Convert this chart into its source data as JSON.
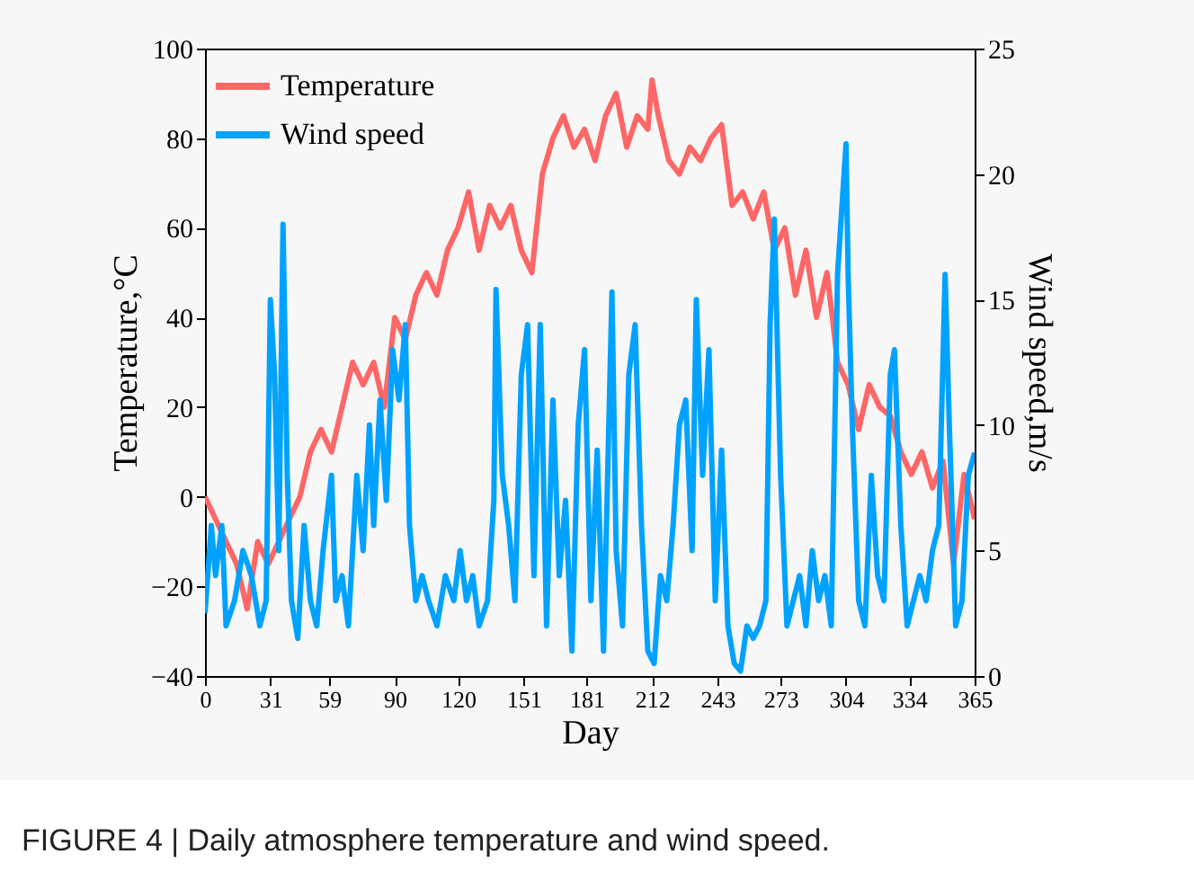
{
  "chart_data": {
    "type": "line",
    "xlabel": "Day",
    "ylabel": "Temperature,°C",
    "y2label": "Wind speed,m/s",
    "xlim": [
      0,
      365
    ],
    "xticks": [
      0,
      31,
      59,
      90,
      120,
      151,
      181,
      212,
      243,
      273,
      304,
      334,
      365
    ],
    "ylim": [
      -40,
      100
    ],
    "yticks": [
      -40,
      -20,
      0,
      20,
      40,
      60,
      80,
      100
    ],
    "y2lim": [
      0,
      25
    ],
    "y2ticks": [
      0,
      5,
      10,
      15,
      20,
      25
    ],
    "legend": "top left",
    "grid": false,
    "annotations": [
      "FIGURE 4 | Daily atmosphere temperature and wind speed."
    ],
    "series": [
      {
        "name": "Temperature",
        "color": "#ff6666",
        "x": [
          0,
          5,
          10,
          15,
          20,
          25,
          30,
          35,
          40,
          45,
          50,
          55,
          60,
          65,
          70,
          75,
          80,
          85,
          90,
          95,
          100,
          105,
          110,
          115,
          120,
          125,
          130,
          135,
          140,
          145,
          150,
          155,
          160,
          165,
          170,
          175,
          180,
          185,
          190,
          195,
          200,
          205,
          210,
          212,
          215,
          220,
          225,
          230,
          235,
          240,
          245,
          250,
          255,
          260,
          265,
          270,
          275,
          280,
          285,
          290,
          295,
          300,
          305,
          310,
          315,
          320,
          325,
          330,
          335,
          340,
          345,
          350,
          355,
          360,
          365
        ],
        "values": [
          0,
          -5,
          -10,
          -15,
          -25,
          -10,
          -15,
          -10,
          -5,
          0,
          10,
          15,
          10,
          20,
          30,
          25,
          30,
          20,
          40,
          35,
          45,
          50,
          45,
          55,
          60,
          68,
          55,
          65,
          60,
          65,
          55,
          50,
          72,
          80,
          85,
          78,
          82,
          75,
          85,
          90,
          78,
          85,
          82,
          93,
          85,
          75,
          72,
          78,
          75,
          80,
          83,
          65,
          68,
          62,
          68,
          55,
          60,
          45,
          55,
          40,
          50,
          30,
          25,
          15,
          25,
          20,
          18,
          10,
          5,
          10,
          2,
          8,
          -15,
          5,
          -5
        ]
      },
      {
        "name": "Wind speed",
        "color": "#00a2ff",
        "axis": "y2",
        "x": [
          0,
          3,
          5,
          8,
          10,
          14,
          18,
          22,
          26,
          29,
          31,
          33,
          35,
          37,
          39,
          41,
          44,
          47,
          50,
          53,
          56,
          60,
          62,
          65,
          68,
          72,
          75,
          78,
          80,
          83,
          86,
          89,
          92,
          95,
          97,
          100,
          103,
          106,
          110,
          114,
          118,
          121,
          124,
          127,
          130,
          134,
          137,
          138,
          141,
          144,
          147,
          150,
          153,
          156,
          159,
          162,
          165,
          168,
          171,
          174,
          177,
          180,
          183,
          186,
          189,
          193,
          195,
          198,
          201,
          204,
          207,
          210,
          213,
          216,
          219,
          222,
          225,
          228,
          231,
          233,
          236,
          239,
          242,
          245,
          248,
          251,
          254,
          257,
          260,
          263,
          266,
          268,
          270,
          273,
          276,
          279,
          282,
          285,
          288,
          291,
          294,
          297,
          300,
          304,
          305,
          307,
          310,
          313,
          316,
          319,
          322,
          325,
          327,
          330,
          333,
          336,
          339,
          342,
          345,
          348,
          351,
          353,
          356,
          359,
          362,
          365
        ],
        "values": [
          2.5,
          6,
          4,
          6,
          2,
          3,
          5,
          4,
          2,
          3,
          15,
          12,
          5,
          18,
          8,
          3,
          1.5,
          6,
          3,
          2,
          5,
          8,
          3,
          4,
          2,
          8,
          5,
          10,
          6,
          11,
          7,
          13,
          11,
          14,
          6,
          3,
          4,
          3,
          2,
          4,
          3,
          5,
          3,
          4,
          2,
          3,
          7,
          15.4,
          8,
          6,
          3,
          12,
          14,
          4,
          14,
          2,
          11,
          4,
          7,
          1,
          10,
          13,
          3,
          9,
          1,
          15.3,
          5,
          2,
          12,
          14,
          6,
          1,
          0.5,
          4,
          3,
          6,
          10,
          11,
          5,
          15,
          8,
          13,
          3,
          9,
          2,
          0.5,
          0.2,
          2,
          1.5,
          2,
          3,
          14,
          18.2,
          8,
          2,
          3,
          4,
          2,
          5,
          3,
          4,
          2,
          16,
          21.2,
          16,
          10,
          3,
          2,
          8,
          4,
          3,
          12,
          13,
          6,
          2,
          3,
          4,
          3,
          5,
          6,
          16,
          10,
          2,
          3,
          8,
          8.9
        ]
      }
    ]
  }
}
